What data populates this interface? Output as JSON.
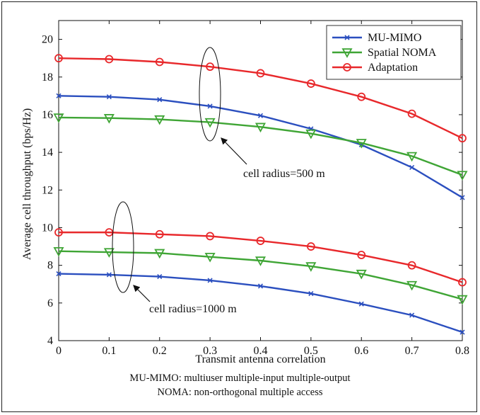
{
  "chart_data": {
    "type": "line",
    "title": "",
    "xlabel": "Transmit antenna correlation",
    "ylabel": "Average cell throughput (bps/Hz)",
    "x": [
      0,
      0.1,
      0.2,
      0.3,
      0.4,
      0.5,
      0.6,
      0.7,
      0.8
    ],
    "xlim": [
      0,
      0.8
    ],
    "ylim": [
      4,
      21
    ],
    "xticks": [
      "0",
      "0.1",
      "0.2",
      "0.3",
      "0.4",
      "0.5",
      "0.6",
      "0.7",
      "0.8"
    ],
    "yticks": [
      "4",
      "6",
      "8",
      "10",
      "12",
      "14",
      "16",
      "18",
      "20"
    ],
    "grid": false,
    "legend_position": "top-right",
    "legend": [
      {
        "name": "MU-MIMO",
        "color": "#2b4fbf",
        "marker": "x"
      },
      {
        "name": "Spatial NOMA",
        "color": "#3fa535",
        "marker": "triangle-down"
      },
      {
        "name": "Adaptation",
        "color": "#e8282b",
        "marker": "circle"
      }
    ],
    "series": [
      {
        "group": "cell radius=500 m",
        "legend_index": 0,
        "values": [
          17.0,
          16.95,
          16.8,
          16.45,
          15.95,
          15.25,
          14.4,
          13.2,
          11.6
        ]
      },
      {
        "group": "cell radius=500 m",
        "legend_index": 1,
        "values": [
          15.85,
          15.82,
          15.75,
          15.6,
          15.35,
          15.0,
          14.5,
          13.8,
          12.8
        ]
      },
      {
        "group": "cell radius=500 m",
        "legend_index": 2,
        "values": [
          19.0,
          18.95,
          18.8,
          18.55,
          18.2,
          17.65,
          16.95,
          16.05,
          14.75
        ]
      },
      {
        "group": "cell radius=1000 m",
        "legend_index": 0,
        "values": [
          7.55,
          7.5,
          7.4,
          7.2,
          6.9,
          6.5,
          5.95,
          5.35,
          4.45
        ]
      },
      {
        "group": "cell radius=1000 m",
        "legend_index": 1,
        "values": [
          8.75,
          8.7,
          8.65,
          8.45,
          8.25,
          7.95,
          7.55,
          6.95,
          6.2
        ]
      },
      {
        "group": "cell radius=1000 m",
        "legend_index": 2,
        "values": [
          9.75,
          9.75,
          9.65,
          9.55,
          9.3,
          9.0,
          8.55,
          8.0,
          7.1
        ]
      }
    ],
    "annotations": [
      {
        "text": "cell radius=500 m",
        "target_x": 0.31,
        "target_y": 16.5
      },
      {
        "text": "cell radius=1000 m",
        "target_x": 0.13,
        "target_y": 7.5
      }
    ]
  },
  "caption": {
    "line1": "MU-MIMO: multiuser multiple-input multiple-output",
    "line2": "NOMA: non-orthogonal multiple access"
  }
}
